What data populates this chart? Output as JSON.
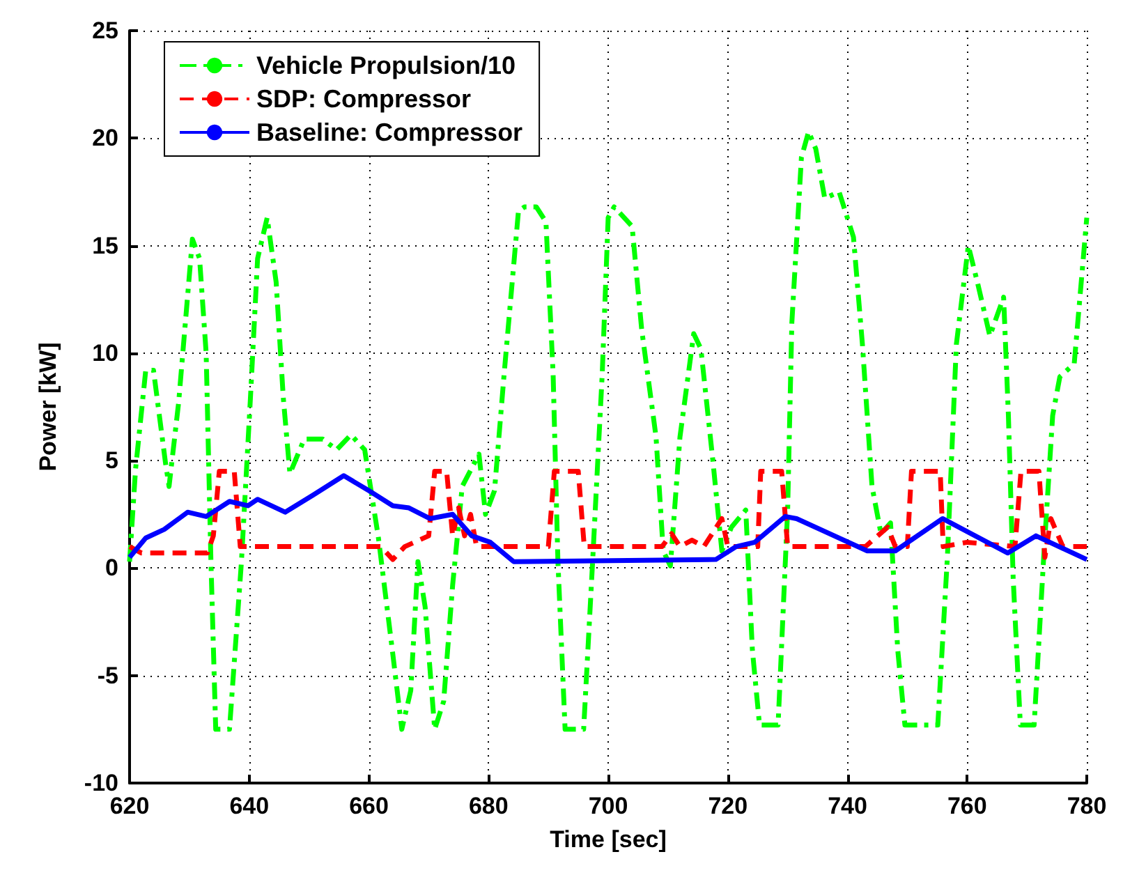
{
  "chart_data": {
    "type": "line",
    "xlabel": "Time [sec]",
    "ylabel": "Power [kW]",
    "xlim": [
      620,
      780
    ],
    "xticks": [
      620,
      640,
      660,
      680,
      700,
      720,
      740,
      760,
      780
    ],
    "ylim": [
      -10,
      25
    ],
    "yticks": [
      -10,
      -5,
      0,
      5,
      10,
      15,
      20,
      25
    ],
    "grid": true,
    "legend": "top left",
    "marker": "none",
    "series": [
      {
        "name": "Vehicle Propulsion/10",
        "color": "#00ff00",
        "line_style": "dashdot",
        "x": [
          620,
          621,
          622.7,
          624,
          626,
          626.6,
          628.2,
          630.5,
          631.7,
          632.8,
          633.6,
          634.4,
          636.7,
          638.7,
          640.2,
          641.4,
          643,
          644.5,
          645.7,
          646.8,
          649.2,
          652.3,
          654.6,
          657,
          659.3,
          661.6,
          664,
          665.5,
          667,
          668.2,
          669.4,
          671,
          672.5,
          674,
          675.6,
          678.4,
          679.5,
          681,
          682.6,
          685,
          686,
          688,
          689.6,
          690.8,
          691.6,
          692.8,
          695.9,
          697.4,
          699,
          700,
          701,
          704,
          705.6,
          708,
          709.2,
          710.4,
          712,
          714.3,
          715.5,
          717.5,
          719,
          720.6,
          723,
          724.1,
          725.3,
          728.4,
          730,
          730.7,
          732.3,
          733.5,
          734.7,
          736.2,
          738.6,
          741,
          742.5,
          744.1,
          745.6,
          747.2,
          748.4,
          749.6,
          755.1,
          756.7,
          758.2,
          760.2,
          761.8,
          763.8,
          766.1,
          766.9,
          767.7,
          768.9,
          771.2,
          772.8,
          774.3,
          775.5,
          777.9,
          780
        ],
        "values": [
          0.3,
          4.6,
          9.2,
          9.2,
          4.9,
          3.8,
          7.7,
          15.3,
          14.4,
          10,
          0.3,
          -7.5,
          -7.5,
          0.3,
          7.9,
          14.4,
          16.3,
          13.3,
          7.9,
          4.4,
          6,
          6,
          5.5,
          6.2,
          5.5,
          1.4,
          -4,
          -7.5,
          -5.7,
          0.3,
          -1.8,
          -7.5,
          -6.2,
          -0.8,
          3.8,
          5.3,
          2.5,
          3.6,
          9,
          16.6,
          16.8,
          16.8,
          16.1,
          9,
          0.3,
          -7.5,
          -7.5,
          0.3,
          9,
          16.3,
          16.8,
          15.9,
          11.1,
          6.1,
          0.8,
          0.1,
          6.1,
          10.9,
          10.2,
          5,
          0.8,
          1.9,
          2.7,
          -3.8,
          -7.3,
          -7.3,
          2.7,
          11.4,
          19.1,
          20.3,
          19.5,
          17.2,
          17.5,
          15.4,
          10.4,
          3.8,
          1.6,
          2.1,
          -3.8,
          -7.3,
          -7.3,
          0.5,
          10.4,
          15,
          13.2,
          10.8,
          12.6,
          7.1,
          -0.5,
          -7.3,
          -7.3,
          0.5,
          7.1,
          8.9,
          9.5,
          16.3
        ]
      },
      {
        "name": "SDP: Compressor",
        "color": "#ff0000",
        "line_style": "dashed",
        "x": [
          620,
          622,
          633,
          634,
          635,
          637.5,
          638.5,
          662,
          664,
          666,
          670,
          671,
          673,
          674,
          675,
          676,
          677,
          678,
          690,
          691,
          695,
          696,
          709,
          710.6,
          712,
          714,
          716,
          719,
          720,
          725,
          725.5,
          729,
          730,
          743,
          746.7,
          748,
          750,
          750.7,
          755.5,
          756,
          760,
          768,
          769,
          772,
          773,
          774,
          776,
          780
        ],
        "values": [
          1,
          0.7,
          0.7,
          1.5,
          4.5,
          4.5,
          1,
          1,
          0.4,
          1,
          1.5,
          4.5,
          4.5,
          1.5,
          2.8,
          1.5,
          2.5,
          1,
          1,
          4.5,
          4.5,
          1,
          1,
          1.6,
          1,
          1.3,
          1,
          2.3,
          1,
          1,
          4.5,
          4.5,
          1,
          1,
          1.9,
          1,
          1,
          4.5,
          4.5,
          1,
          1.2,
          1,
          4.5,
          4.5,
          0.5,
          2.3,
          1,
          1
        ]
      },
      {
        "name": "Baseline: Compressor",
        "color": "#0000ff",
        "line_style": "solid",
        "x": [
          620,
          622.7,
          625.8,
          629.7,
          632.8,
          636.7,
          639.8,
          641.4,
          646,
          650.7,
          655.8,
          660,
          664,
          666.7,
          670.2,
          674,
          677.2,
          680.3,
          684.2,
          718,
          721.4,
          724.5,
          729.6,
          731.5,
          743.3,
          748,
          755.9,
          766.8,
          771.5,
          780
        ],
        "values": [
          0.5,
          1.4,
          1.8,
          2.6,
          2.4,
          3.1,
          2.9,
          3.2,
          2.6,
          3.4,
          4.3,
          3.6,
          2.9,
          2.8,
          2.3,
          2.5,
          1.5,
          1.2,
          0.3,
          0.4,
          1.0,
          1.2,
          2.4,
          2.3,
          0.8,
          0.8,
          2.3,
          0.7,
          1.5,
          0.4
        ]
      }
    ]
  }
}
